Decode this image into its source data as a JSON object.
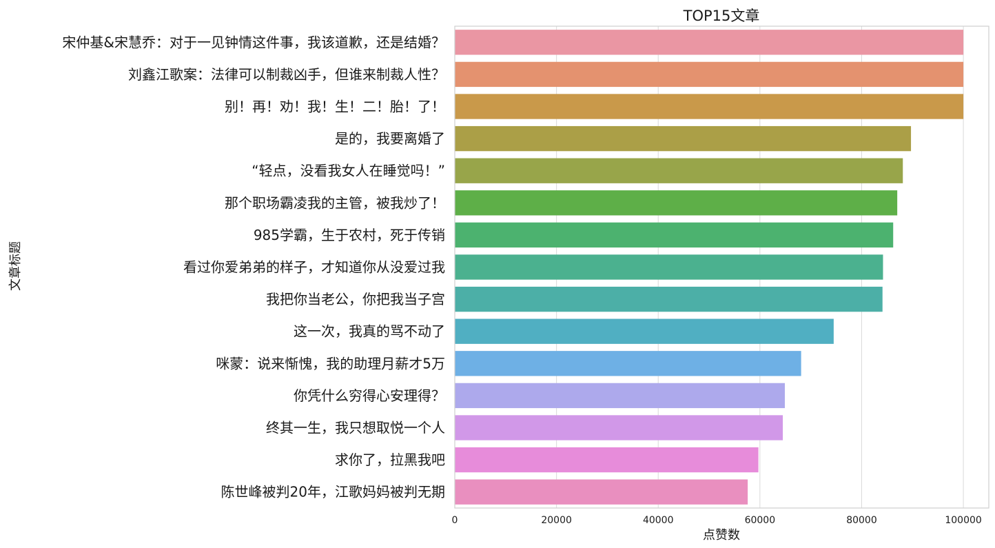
{
  "chart_data": {
    "type": "bar",
    "orientation": "horizontal",
    "title": "TOP15文章",
    "xlabel": "点赞数",
    "ylabel": "文章标题",
    "xlim": [
      0,
      105000
    ],
    "xticks": [
      0,
      20000,
      40000,
      60000,
      80000,
      100000
    ],
    "grid": "vertical",
    "categories": [
      "宋仲基&宋慧乔：对于一见钟情这件事，我该道歉，还是结婚？",
      "刘鑫江歌案：法律可以制裁凶手，但谁来制裁人性？",
      "别！再！劝！我！生！二！胎！了！",
      "是的，我要离婚了",
      "“轻点，没看我女人在睡觉吗！”",
      "那个职场霸凌我的主管，被我炒了！",
      "985学霸，生于农村，死于传销",
      "看过你爱弟弟的样子，才知道你从没爱过我",
      "我把你当老公，你把我当子宫",
      "这一次，我真的骂不动了",
      "咪蒙：说来惭愧，我的助理月薪才5万",
      "你凭什么穷得心安理得？",
      "终其一生，我只想取悦一个人",
      "求你了，拉黑我吧",
      "陈世峰被判20年，江歌妈妈被判无期"
    ],
    "values": [
      100001,
      100001,
      100001,
      89700,
      88100,
      87000,
      86200,
      84200,
      84100,
      74500,
      68100,
      64900,
      64500,
      59700,
      57600
    ],
    "colors": [
      "#ea96a3",
      "#e4926f",
      "#c9994a",
      "#ab9f47",
      "#98a54a",
      "#5eaf48",
      "#4cb26f",
      "#4bb18f",
      "#4cafa7",
      "#50afc2",
      "#6eb0e5",
      "#ada9ec",
      "#d198e8",
      "#e78cda",
      "#e98fbf"
    ]
  }
}
